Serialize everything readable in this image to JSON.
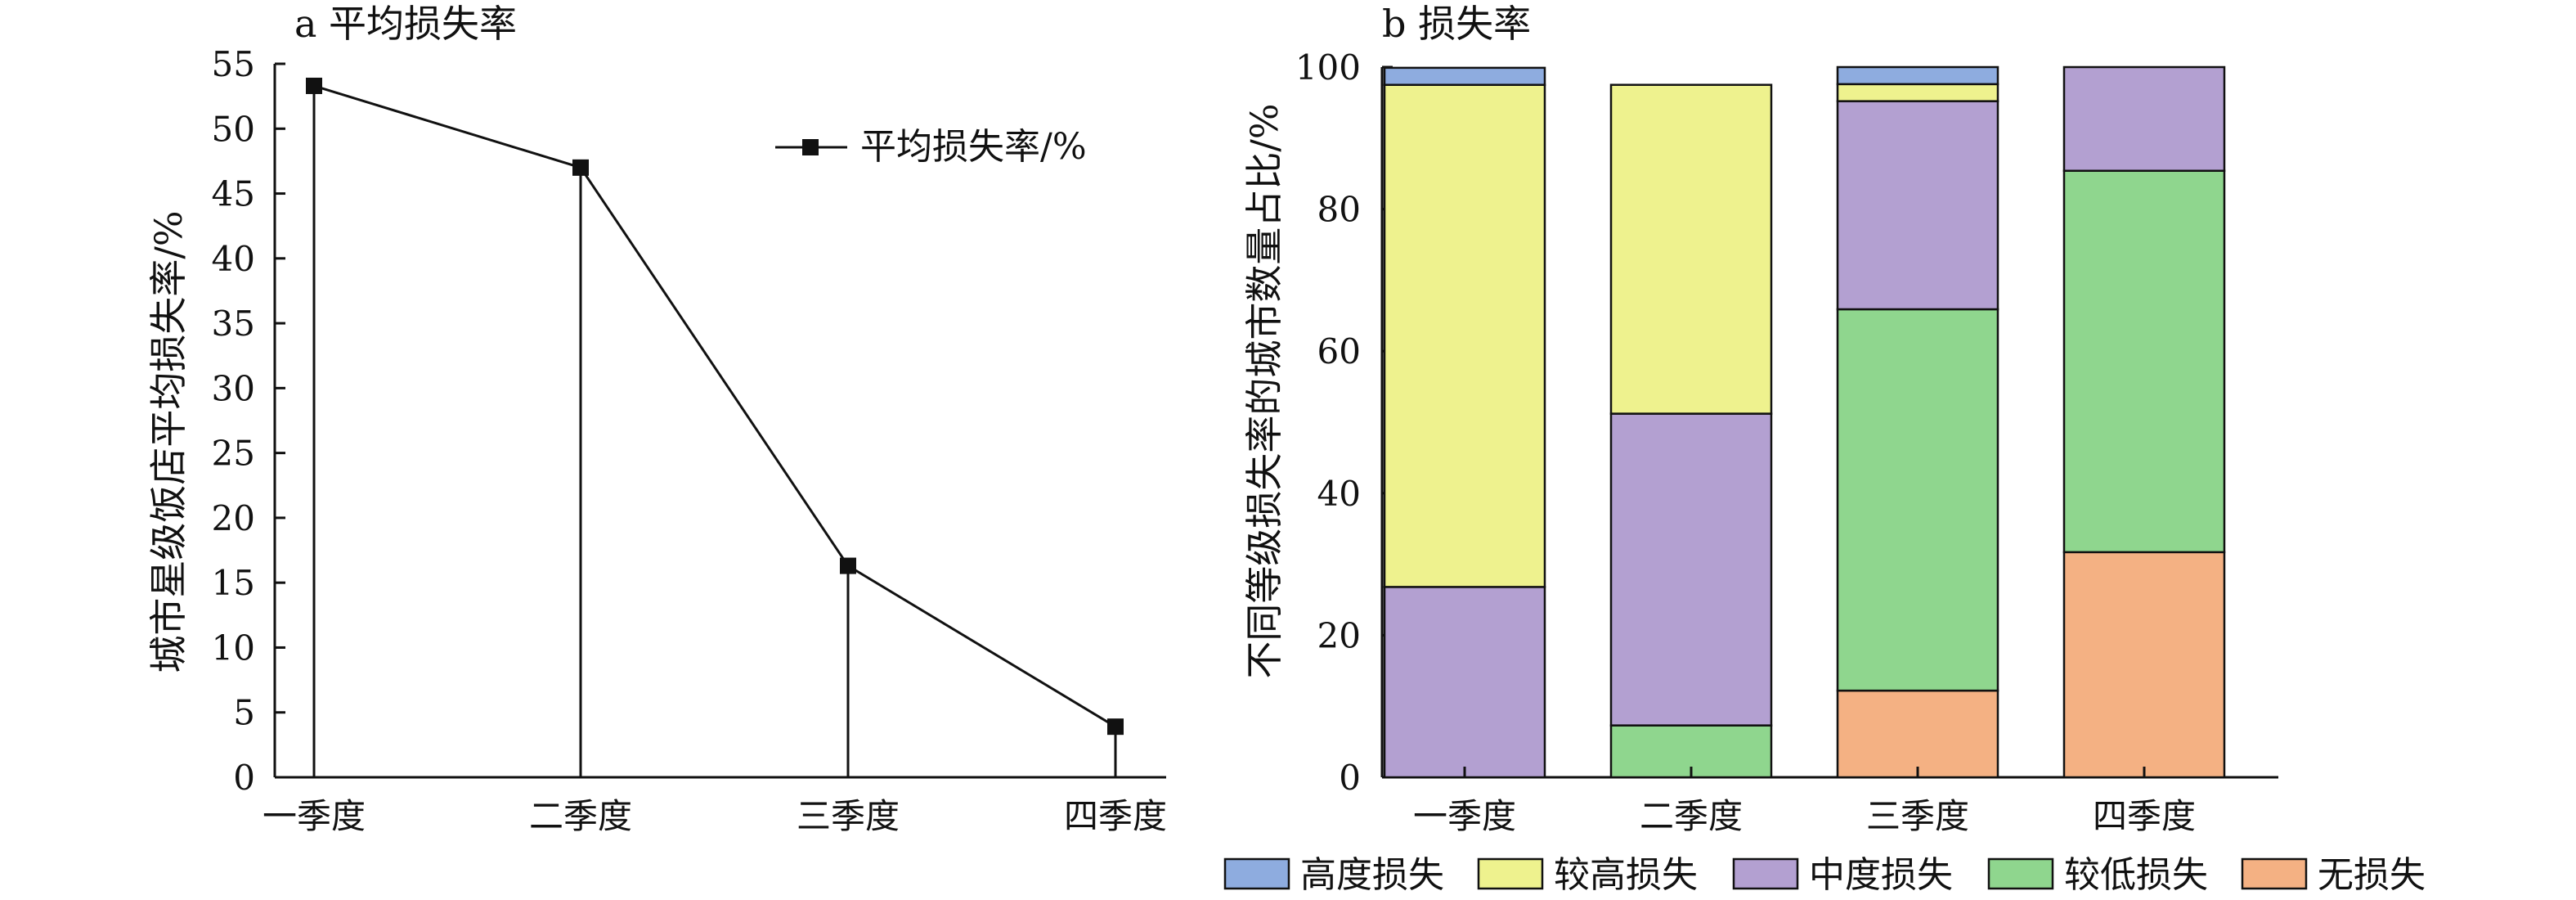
{
  "chart_data": [
    {
      "type": "line",
      "title": "a 平均损失率",
      "xlabel": "",
      "ylabel": "城市星级饭店平均损失率/%",
      "categories": [
        "一季度",
        "二季度",
        "三季度",
        "四季度"
      ],
      "ylim": [
        0,
        55
      ],
      "yticks": [
        0,
        5,
        10,
        15,
        20,
        25,
        30,
        35,
        40,
        45,
        50,
        55
      ],
      "series": [
        {
          "name": "平均损失率/%",
          "values": [
            53.3,
            47.0,
            16.3,
            3.9
          ]
        }
      ],
      "marker": "square",
      "drop_lines": true,
      "grid": false,
      "legend_position": "top-right"
    },
    {
      "type": "bar",
      "stacked": true,
      "title": "b 损失率",
      "xlabel": "",
      "ylabel": "不同等级损失率的城市数量占比/%",
      "categories": [
        "一季度",
        "二季度",
        "三季度",
        "四季度"
      ],
      "ylim": [
        0,
        100
      ],
      "yticks": [
        0,
        20,
        40,
        60,
        80,
        100
      ],
      "series": [
        {
          "name": "无损失",
          "color": "#f4b183",
          "values": [
            0,
            0,
            12.2,
            31.7
          ]
        },
        {
          "name": "较低损失",
          "color": "#8fd68e",
          "values": [
            0,
            7.3,
            53.7,
            53.7
          ]
        },
        {
          "name": "中度损失",
          "color": "#b3a0d1",
          "values": [
            26.8,
            43.9,
            29.3,
            14.6
          ]
        },
        {
          "name": "较高损失",
          "color": "#eef28e",
          "values": [
            70.7,
            46.3,
            2.4,
            0
          ]
        },
        {
          "name": "高度损失",
          "color": "#8eacdf",
          "values": [
            2.4,
            0,
            2.4,
            0
          ]
        }
      ],
      "legend_order": [
        "高度损失",
        "较高损失",
        "中度损失",
        "较低损失",
        "无损失"
      ],
      "grid": false,
      "legend_position": "bottom"
    }
  ]
}
